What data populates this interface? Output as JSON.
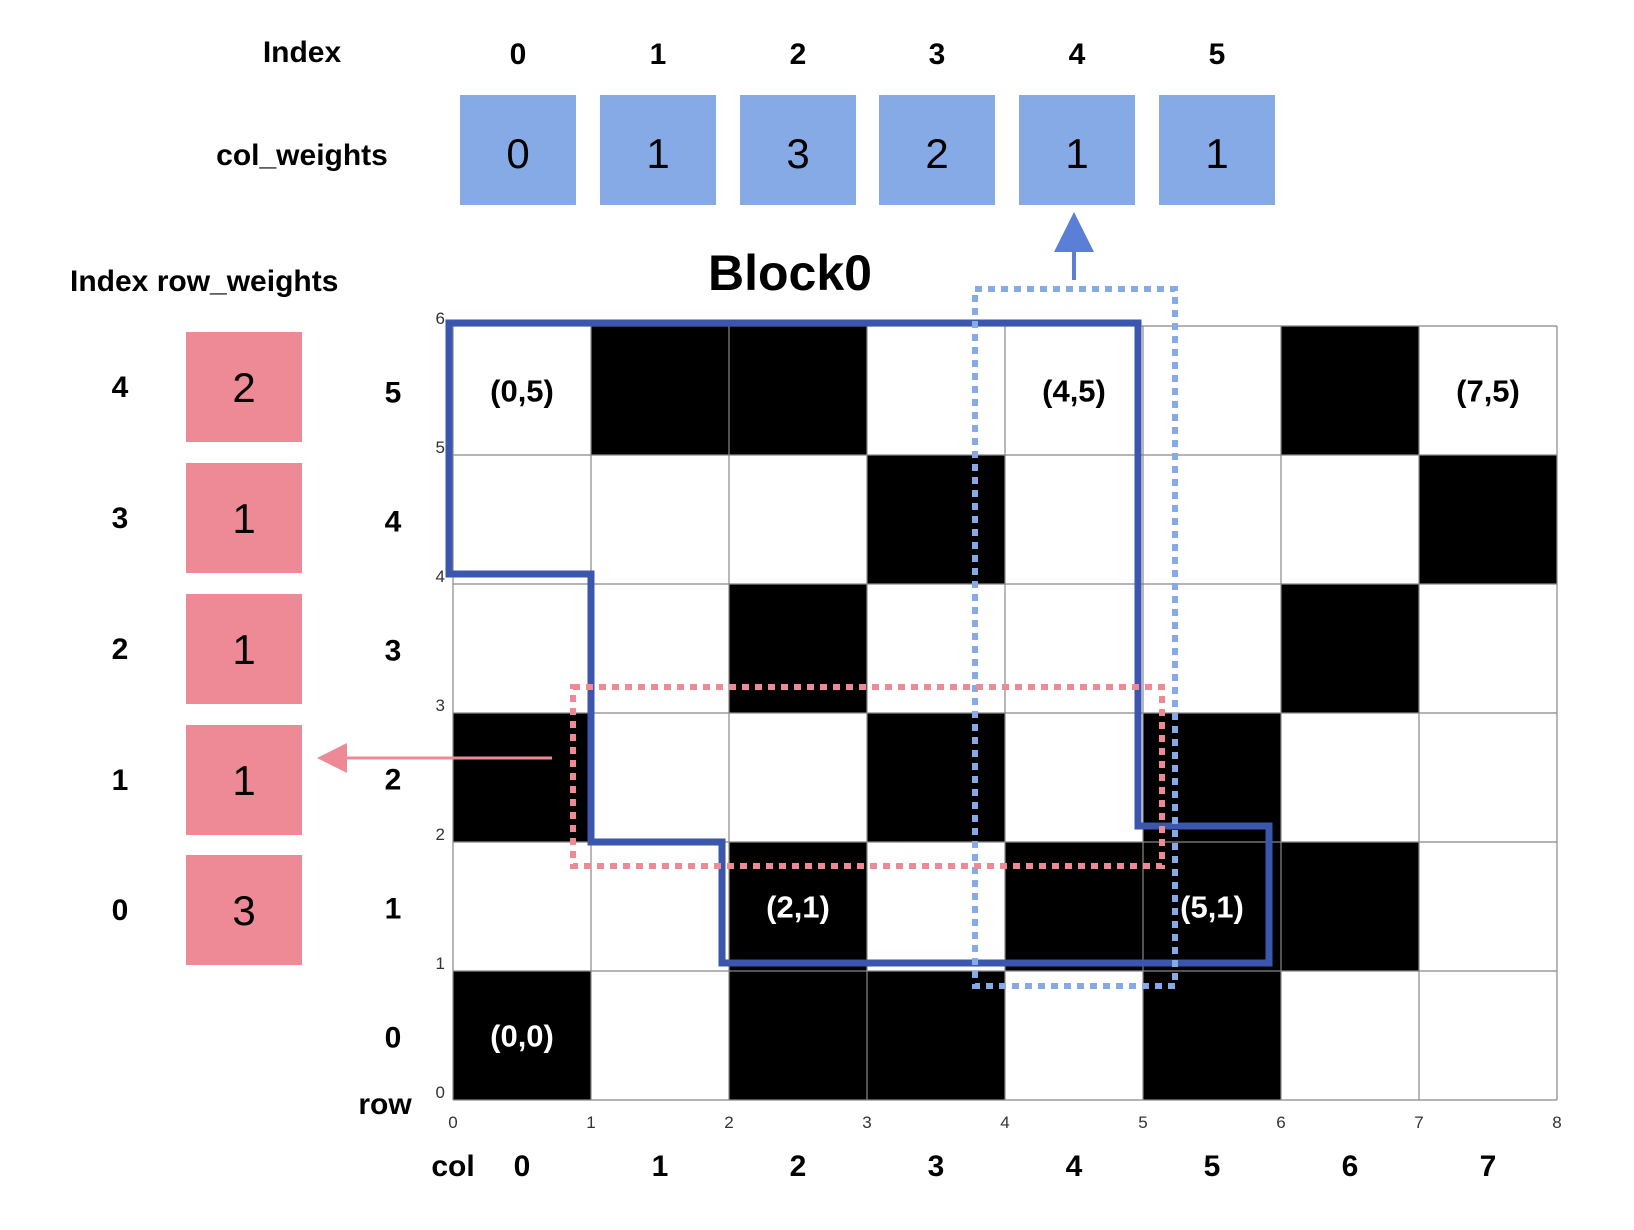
{
  "colors": {
    "col_box": "#86aae6",
    "row_box": "#ee8a95",
    "block_outline": "#3a57ad",
    "col_dotted": "#86aae6",
    "row_dotted": "#ee8a95",
    "dark_cell": "#000000",
    "light_cell": "#ffffff"
  },
  "col_weights": {
    "index_label": "Index",
    "label": "col_weights",
    "indices": [
      "0",
      "1",
      "2",
      "3",
      "4",
      "5"
    ],
    "values": [
      "0",
      "1",
      "3",
      "2",
      "1",
      "1"
    ]
  },
  "row_weights": {
    "header": "Index row_weights",
    "indices": [
      "4",
      "3",
      "2",
      "1",
      "0"
    ],
    "values": [
      "2",
      "1",
      "1",
      "1",
      "3"
    ]
  },
  "block": {
    "title": "Block0"
  },
  "grid": {
    "cols": 8,
    "rows": 6,
    "row_axis_label": "row",
    "col_axis_label": "col",
    "row_labels": [
      "0",
      "1",
      "2",
      "3",
      "4",
      "5"
    ],
    "col_labels": [
      "0",
      "1",
      "2",
      "3",
      "4",
      "5",
      "6",
      "7"
    ],
    "x_ticks": [
      "0",
      "1",
      "2",
      "3",
      "4",
      "5",
      "6",
      "7",
      "8"
    ],
    "y_ticks": [
      "0",
      "1",
      "2",
      "3",
      "4",
      "5",
      "6"
    ],
    "dark_cells": [
      [
        0,
        0
      ],
      [
        2,
        0
      ],
      [
        3,
        0
      ],
      [
        5,
        0
      ],
      [
        2,
        1
      ],
      [
        4,
        1
      ],
      [
        5,
        1
      ],
      [
        6,
        1
      ],
      [
        0,
        2
      ],
      [
        3,
        2
      ],
      [
        5,
        2
      ],
      [
        2,
        3
      ],
      [
        6,
        3
      ],
      [
        3,
        4
      ],
      [
        7,
        4
      ],
      [
        1,
        5
      ],
      [
        2,
        5
      ],
      [
        6,
        5
      ]
    ],
    "cell_labels": [
      {
        "col": 0,
        "row": 5,
        "text": "(0,5)"
      },
      {
        "col": 4,
        "row": 5,
        "text": "(4,5)"
      },
      {
        "col": 7,
        "row": 5,
        "text": "(7,5)"
      },
      {
        "col": 2,
        "row": 1,
        "text": "(2,1)"
      },
      {
        "col": 5,
        "row": 1,
        "text": "(5,1)"
      },
      {
        "col": 0,
        "row": 0,
        "text": "(0,0)"
      }
    ]
  }
}
